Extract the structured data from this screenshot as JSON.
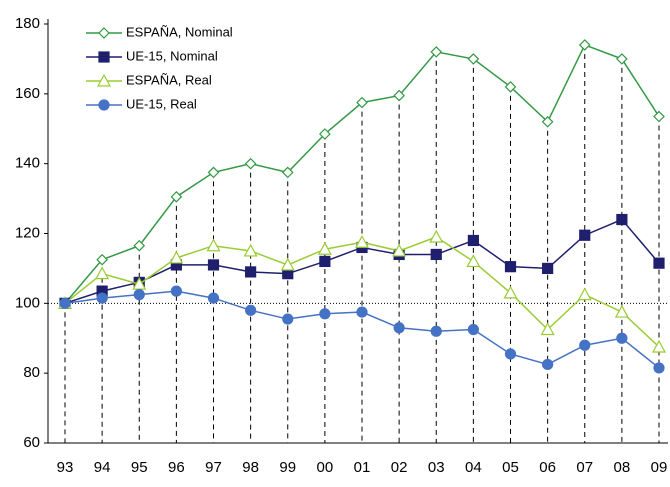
{
  "chart_data": {
    "type": "line",
    "categories": [
      "93",
      "94",
      "95",
      "96",
      "97",
      "98",
      "99",
      "00",
      "01",
      "02",
      "03",
      "04",
      "05",
      "06",
      "07",
      "08",
      "09"
    ],
    "series": [
      {
        "name": "ESPAÑA, Nominal",
        "color": "#339944",
        "marker": "diamond-open",
        "values": [
          100,
          112.5,
          116.5,
          130.5,
          137.5,
          140,
          137.5,
          148.5,
          157.5,
          159.5,
          172,
          170,
          162,
          152,
          174,
          170,
          153.5
        ]
      },
      {
        "name": "UE-15, Nominal",
        "color": "#1f1f6e",
        "marker": "square",
        "values": [
          100,
          103.5,
          106,
          111,
          111,
          109,
          108.5,
          112,
          116,
          114,
          114,
          118,
          110.5,
          110,
          119.5,
          124,
          111.5
        ]
      },
      {
        "name": "ESPAÑA, Real",
        "color": "#99cc33",
        "marker": "triangle-open",
        "values": [
          100,
          108.5,
          105.5,
          113,
          116.5,
          115,
          111,
          115.5,
          117.5,
          115,
          119,
          112,
          103,
          92.5,
          102.5,
          97.5,
          87.5
        ]
      },
      {
        "name": "UE-15, Real",
        "color": "#4472c4",
        "marker": "circle",
        "values": [
          100,
          101.5,
          102.5,
          103.5,
          101.5,
          98,
          95.5,
          97,
          97.5,
          93,
          92,
          92.5,
          85.5,
          82.5,
          88,
          90,
          81.5
        ]
      }
    ],
    "ylim": [
      60,
      180
    ],
    "yticks": [
      60,
      80,
      100,
      120,
      140,
      160,
      180
    ],
    "baseline": 100,
    "legend": "top-left"
  }
}
